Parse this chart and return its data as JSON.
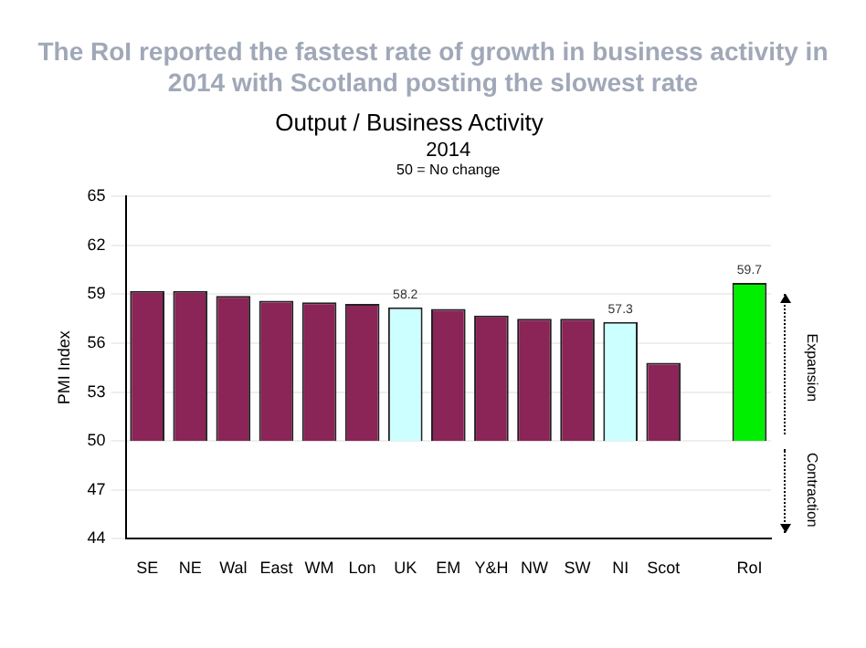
{
  "chart_data": {
    "type": "bar",
    "title": "The RoI reported the fastest rate of growth in business activity in 2014 with Scotland posting the slowest rate",
    "subtitle": "Output / Business Activity",
    "ylabel": "PMI Index",
    "annotations": [
      "2014",
      "50 = No change",
      "Expansion",
      "Contraction"
    ],
    "categories": [
      "SE",
      "NE",
      "Wal",
      "East",
      "WM",
      "Lon",
      "UK",
      "EM",
      "Y&H",
      "NW",
      "SW",
      "NI",
      "Scot",
      null,
      "RoI"
    ],
    "base": [
      50,
      50,
      50,
      50,
      50,
      50,
      50,
      50,
      50,
      50,
      50,
      50,
      50,
      null,
      50
    ],
    "values": [
      9.2,
      9.2,
      8.9,
      8.6,
      8.5,
      8.4,
      8.2,
      8.1,
      7.7,
      7.5,
      7.5,
      7.3,
      4.8,
      null,
      9.7
    ],
    "value_labels": [
      null,
      null,
      null,
      null,
      null,
      null,
      "58.2",
      null,
      null,
      null,
      null,
      "57.3",
      null,
      null,
      "59.7"
    ],
    "colors": [
      "#8b2457",
      "#8b2457",
      "#8b2457",
      "#8b2457",
      "#8b2457",
      "#8b2457",
      "#ccffff",
      "#8b2457",
      "#8b2457",
      "#8b2457",
      "#8b2457",
      "#ccffff",
      "#8b2457",
      "#8b2457",
      "#00ee00"
    ],
    "ylim": [
      44,
      65
    ],
    "yticks": [
      44,
      47,
      50,
      53,
      56,
      59,
      62,
      65
    ],
    "grid": "y",
    "legend": false
  }
}
